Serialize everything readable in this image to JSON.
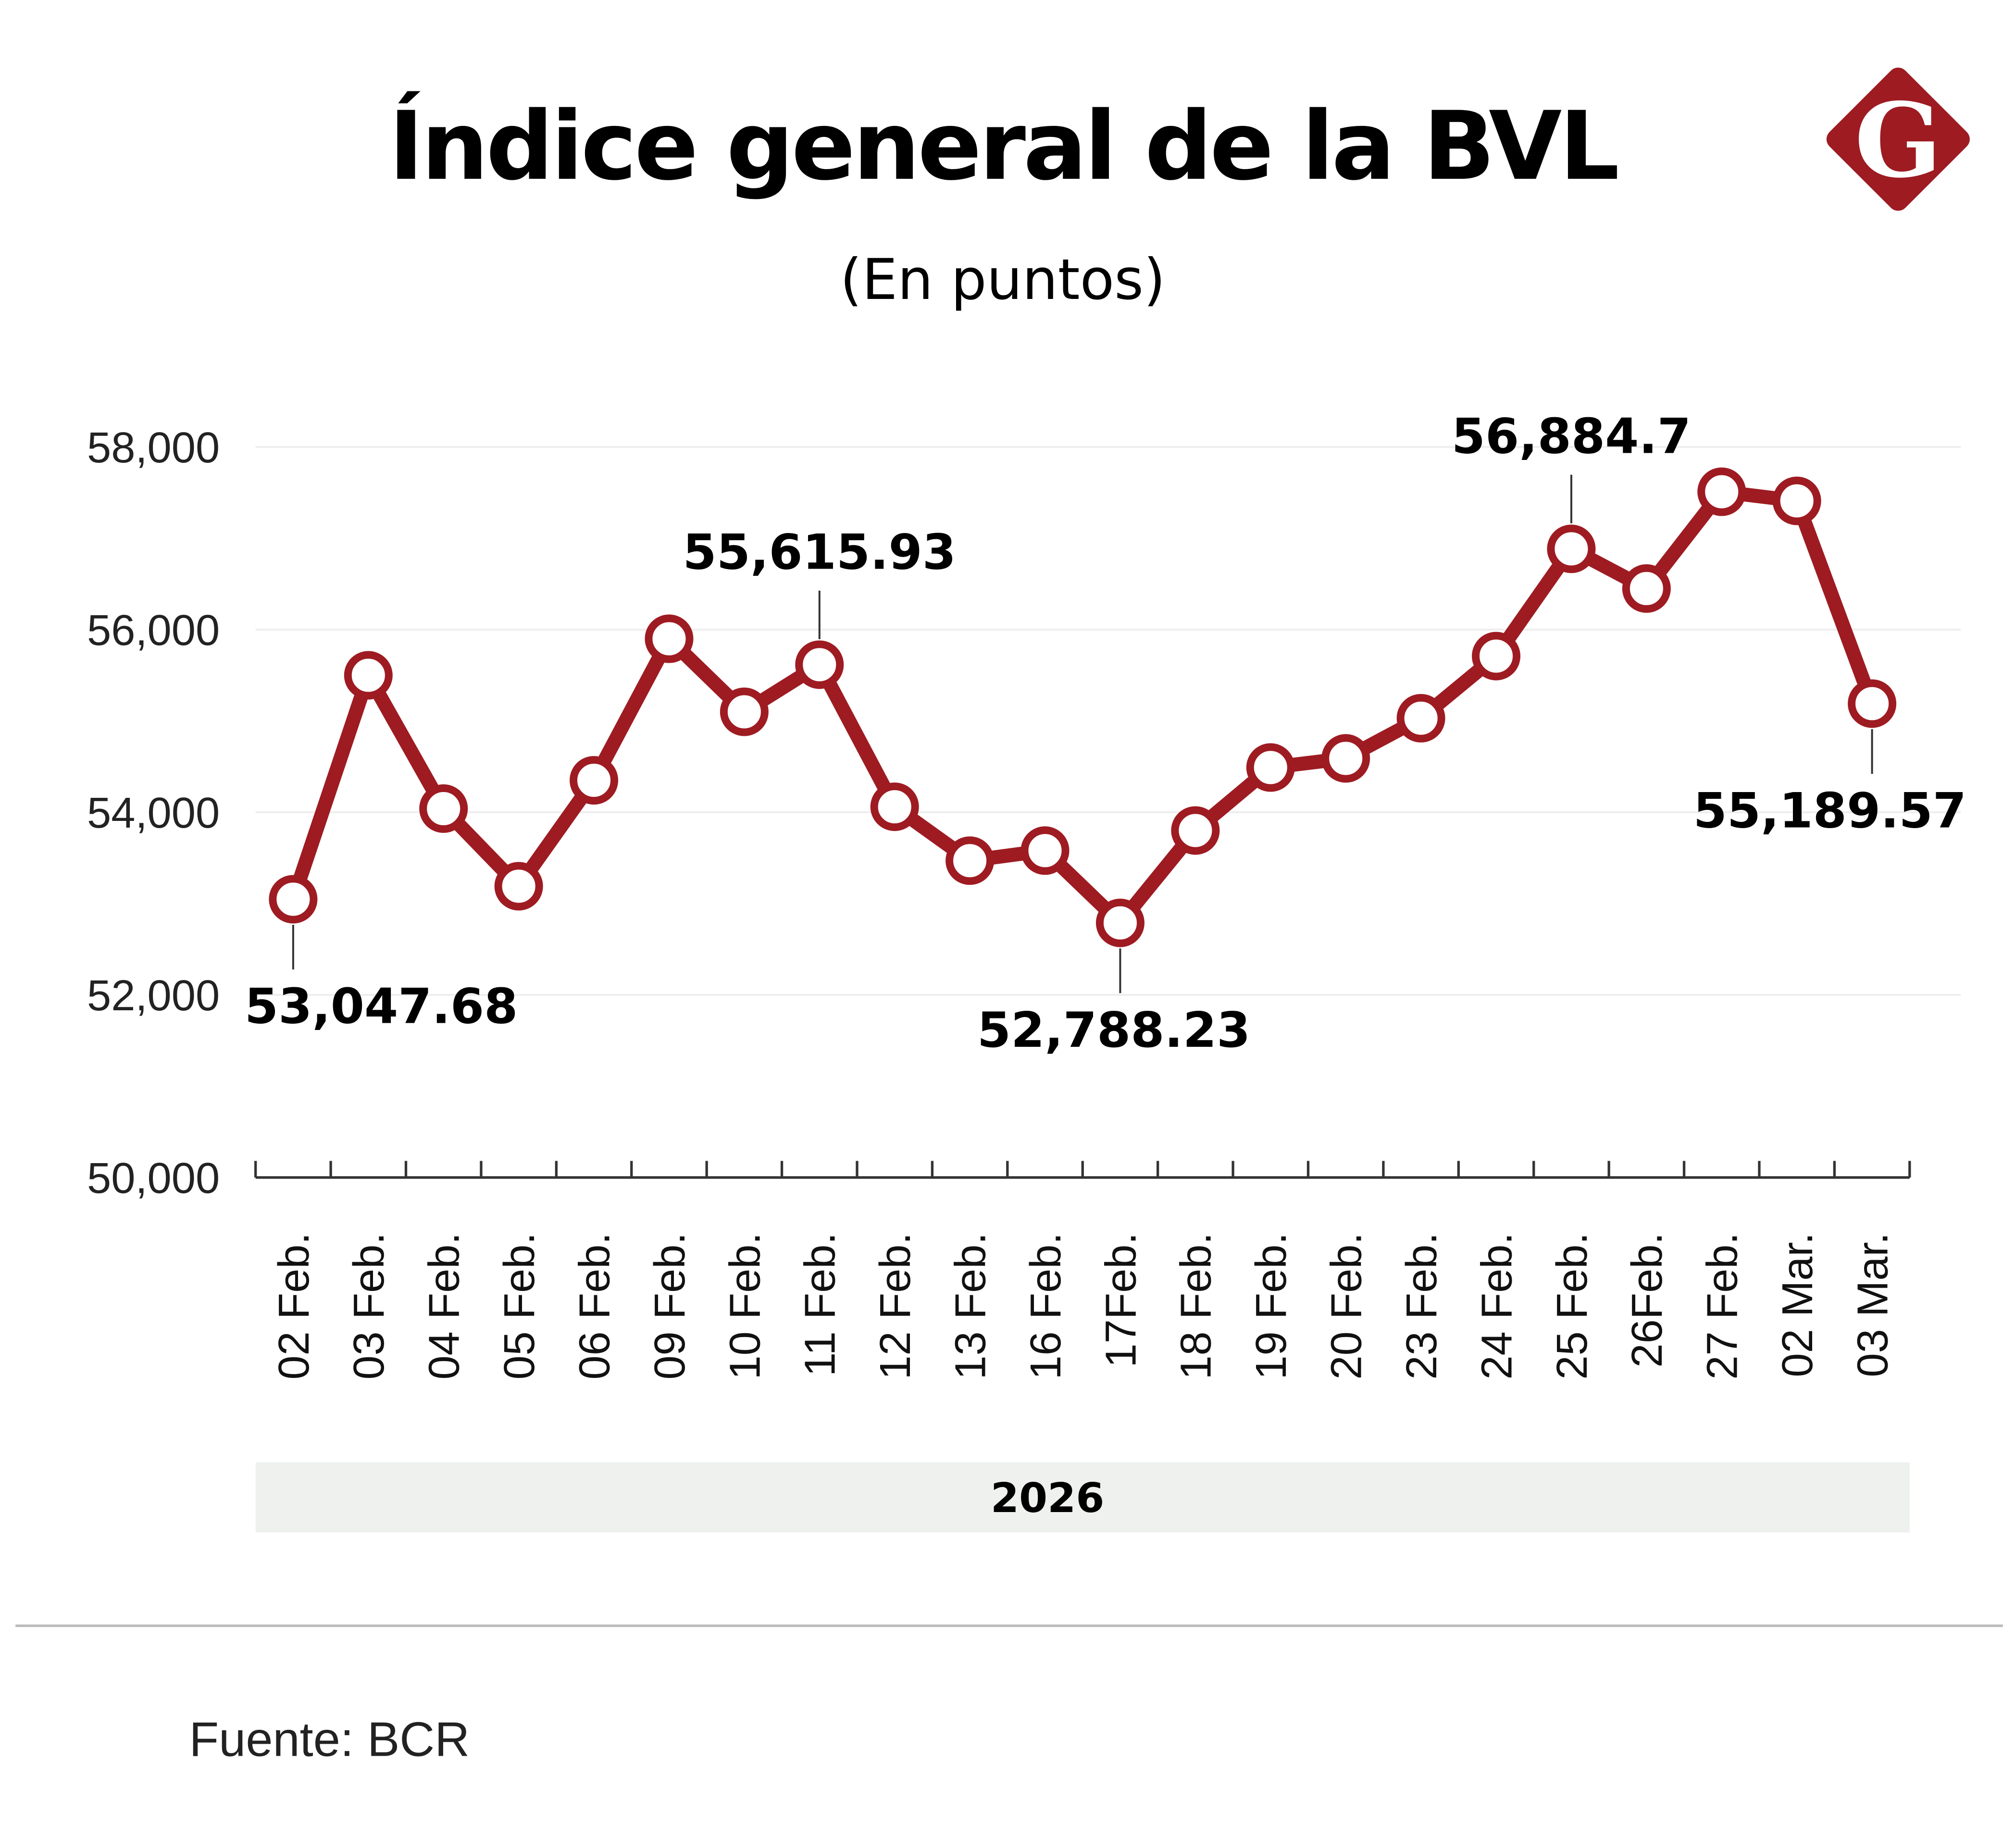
{
  "colors": {
    "line": "#9e1b22",
    "logo": "#9e1b22",
    "band": "#eef1ee",
    "grid": "#eeeeee"
  },
  "logo": {
    "letter": "G"
  },
  "source": "Fuente: BCR",
  "chart_data": {
    "type": "line",
    "title": "Índice general de la BVL",
    "subtitle": "(En puntos)",
    "xlabel": "2026",
    "ylabel": "",
    "ylim": [
      50000,
      58000
    ],
    "yticks": [
      50000,
      52000,
      54000,
      56000,
      58000
    ],
    "ytick_labels": [
      "50,000",
      "52,000",
      "54,000",
      "56,000",
      "58,000"
    ],
    "grid": true,
    "categories": [
      "02 Feb.",
      "03 Feb.",
      "04 Feb.",
      "05 Feb.",
      "06 Feb.",
      "09 Feb.",
      "10 Feb.",
      "11 Feb.",
      "12 Feb.",
      "13 Feb.",
      "16 Feb.",
      "17Feb.",
      "18 Feb.",
      "19 Feb.",
      "20 Feb.",
      "23 Feb.",
      "24 Feb.",
      "25 Feb.",
      "26Feb.",
      "27 Feb.",
      "02 Mar.",
      "03 Mar."
    ],
    "series": [
      {
        "name": "Índice general de la BVL",
        "values": [
          53047.68,
          55500,
          54040,
          53190,
          54350,
          55900,
          55100,
          55615.93,
          54060,
          53470,
          53580,
          52788.23,
          53800,
          54490,
          54590,
          55030,
          55710,
          56884.7,
          56450,
          57510,
          57410,
          55189.57
        ]
      }
    ],
    "annotations": [
      {
        "index": 0,
        "text": "53,047.68",
        "position": "below"
      },
      {
        "index": 7,
        "text": "55,615.93",
        "position": "above"
      },
      {
        "index": 11,
        "text": "52,788.23",
        "position": "below"
      },
      {
        "index": 17,
        "text": "56,884.7",
        "position": "above"
      },
      {
        "index": 21,
        "text": "55,189.57",
        "position": "below"
      }
    ]
  }
}
